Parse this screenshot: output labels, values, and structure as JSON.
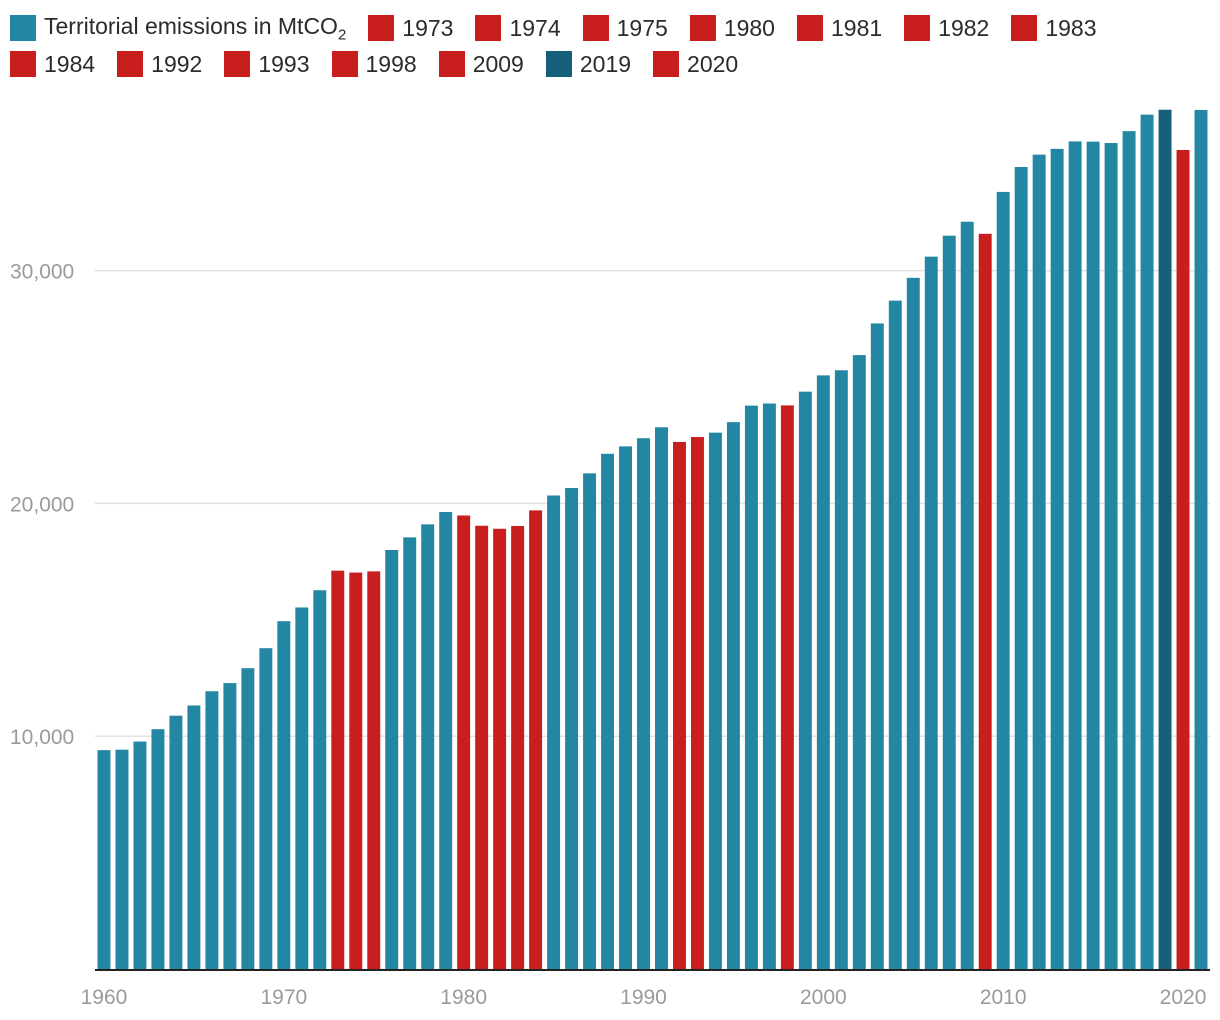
{
  "legend": {
    "main": {
      "label": "Territorial emissions in MtCO",
      "sub": "2",
      "color": "#2386a2"
    },
    "items": [
      {
        "label": "1973",
        "color": "#c81e1e"
      },
      {
        "label": "1974",
        "color": "#c81e1e"
      },
      {
        "label": "1975",
        "color": "#c81e1e"
      },
      {
        "label": "1980",
        "color": "#c81e1e"
      },
      {
        "label": "1981",
        "color": "#c81e1e"
      },
      {
        "label": "1982",
        "color": "#c81e1e"
      },
      {
        "label": "1983",
        "color": "#c81e1e"
      },
      {
        "label": "1984",
        "color": "#c81e1e"
      },
      {
        "label": "1992",
        "color": "#c81e1e"
      },
      {
        "label": "1993",
        "color": "#c81e1e"
      },
      {
        "label": "1998",
        "color": "#c81e1e"
      },
      {
        "label": "2009",
        "color": "#c81e1e"
      },
      {
        "label": "2019",
        "color": "#175e7a"
      },
      {
        "label": "2020",
        "color": "#c81e1e"
      }
    ]
  },
  "chart_data": {
    "type": "bar",
    "title": "",
    "xlabel": "",
    "ylabel": "",
    "ylim": [
      0,
      37500
    ],
    "grid": true,
    "legend_position": "top",
    "colors": {
      "default": "#2386a2",
      "decline": "#c81e1e",
      "2019": "#175e7a"
    },
    "categories": [
      1960,
      1961,
      1962,
      1963,
      1964,
      1965,
      1966,
      1967,
      1968,
      1969,
      1970,
      1971,
      1972,
      1973,
      1974,
      1975,
      1976,
      1977,
      1978,
      1979,
      1980,
      1981,
      1982,
      1983,
      1984,
      1985,
      1986,
      1987,
      1988,
      1989,
      1990,
      1991,
      1992,
      1993,
      1994,
      1995,
      1996,
      1997,
      1998,
      1999,
      2000,
      2001,
      2002,
      2003,
      2004,
      2005,
      2006,
      2007,
      2008,
      2009,
      2010,
      2011,
      2012,
      2013,
      2014,
      2015,
      2016,
      2017,
      2018,
      2019,
      2020,
      2021
    ],
    "values": [
      9400,
      9420,
      9770,
      10300,
      10880,
      11320,
      11930,
      12280,
      12920,
      13780,
      14940,
      15530,
      16270,
      17110,
      17030,
      17080,
      18000,
      18540,
      19100,
      19630,
      19480,
      19040,
      18910,
      19030,
      19700,
      20340,
      20660,
      21290,
      22130,
      22450,
      22800,
      23270,
      22640,
      22850,
      23040,
      23490,
      24200,
      24290,
      24210,
      24800,
      25500,
      25720,
      26370,
      27730,
      28710,
      29690,
      30600,
      31500,
      32100,
      31580,
      33380,
      34450,
      34980,
      35230,
      35550,
      35540,
      35480,
      35990,
      36700,
      36910,
      35180,
      36900
    ],
    "highlights": {
      "decline": [
        1973,
        1974,
        1975,
        1980,
        1981,
        1982,
        1983,
        1984,
        1992,
        1993,
        1998,
        2009,
        2020
      ],
      "2019": [
        2019
      ]
    },
    "y_ticks": [
      "10,000",
      "20,000",
      "30,000"
    ],
    "y_tick_values": [
      10000,
      20000,
      30000
    ],
    "x_ticks": [
      "1960",
      "1970",
      "1980",
      "1990",
      "2000",
      "2010",
      "2020"
    ],
    "x_tick_values": [
      1960,
      1970,
      1980,
      1990,
      2000,
      2010,
      2020
    ]
  }
}
